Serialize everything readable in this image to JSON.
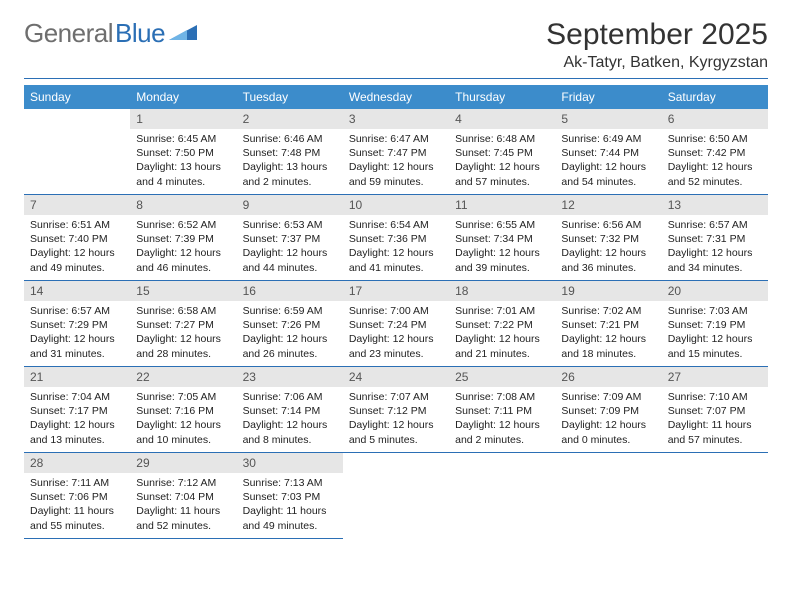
{
  "brand": {
    "name_gray": "General",
    "name_blue": "Blue"
  },
  "title": "September 2025",
  "location": "Ak-Tatyr, Batken, Kyrgyzstan",
  "theme": {
    "header_bg": "#3c8ccb",
    "rule_color": "#2b6fb5",
    "daynum_bg": "#e6e6e6",
    "text_color": "#222222",
    "logo_gray": "#6e6e6e"
  },
  "weekday_labels": [
    "Sunday",
    "Monday",
    "Tuesday",
    "Wednesday",
    "Thursday",
    "Friday",
    "Saturday"
  ],
  "layout": {
    "first_weekday_index": 1,
    "days_in_month": 30
  },
  "days": {
    "1": {
      "sunrise": "6:45 AM",
      "sunset": "7:50 PM",
      "daylight": "13 hours and 4 minutes."
    },
    "2": {
      "sunrise": "6:46 AM",
      "sunset": "7:48 PM",
      "daylight": "13 hours and 2 minutes."
    },
    "3": {
      "sunrise": "6:47 AM",
      "sunset": "7:47 PM",
      "daylight": "12 hours and 59 minutes."
    },
    "4": {
      "sunrise": "6:48 AM",
      "sunset": "7:45 PM",
      "daylight": "12 hours and 57 minutes."
    },
    "5": {
      "sunrise": "6:49 AM",
      "sunset": "7:44 PM",
      "daylight": "12 hours and 54 minutes."
    },
    "6": {
      "sunrise": "6:50 AM",
      "sunset": "7:42 PM",
      "daylight": "12 hours and 52 minutes."
    },
    "7": {
      "sunrise": "6:51 AM",
      "sunset": "7:40 PM",
      "daylight": "12 hours and 49 minutes."
    },
    "8": {
      "sunrise": "6:52 AM",
      "sunset": "7:39 PM",
      "daylight": "12 hours and 46 minutes."
    },
    "9": {
      "sunrise": "6:53 AM",
      "sunset": "7:37 PM",
      "daylight": "12 hours and 44 minutes."
    },
    "10": {
      "sunrise": "6:54 AM",
      "sunset": "7:36 PM",
      "daylight": "12 hours and 41 minutes."
    },
    "11": {
      "sunrise": "6:55 AM",
      "sunset": "7:34 PM",
      "daylight": "12 hours and 39 minutes."
    },
    "12": {
      "sunrise": "6:56 AM",
      "sunset": "7:32 PM",
      "daylight": "12 hours and 36 minutes."
    },
    "13": {
      "sunrise": "6:57 AM",
      "sunset": "7:31 PM",
      "daylight": "12 hours and 34 minutes."
    },
    "14": {
      "sunrise": "6:57 AM",
      "sunset": "7:29 PM",
      "daylight": "12 hours and 31 minutes."
    },
    "15": {
      "sunrise": "6:58 AM",
      "sunset": "7:27 PM",
      "daylight": "12 hours and 28 minutes."
    },
    "16": {
      "sunrise": "6:59 AM",
      "sunset": "7:26 PM",
      "daylight": "12 hours and 26 minutes."
    },
    "17": {
      "sunrise": "7:00 AM",
      "sunset": "7:24 PM",
      "daylight": "12 hours and 23 minutes."
    },
    "18": {
      "sunrise": "7:01 AM",
      "sunset": "7:22 PM",
      "daylight": "12 hours and 21 minutes."
    },
    "19": {
      "sunrise": "7:02 AM",
      "sunset": "7:21 PM",
      "daylight": "12 hours and 18 minutes."
    },
    "20": {
      "sunrise": "7:03 AM",
      "sunset": "7:19 PM",
      "daylight": "12 hours and 15 minutes."
    },
    "21": {
      "sunrise": "7:04 AM",
      "sunset": "7:17 PM",
      "daylight": "12 hours and 13 minutes."
    },
    "22": {
      "sunrise": "7:05 AM",
      "sunset": "7:16 PM",
      "daylight": "12 hours and 10 minutes."
    },
    "23": {
      "sunrise": "7:06 AM",
      "sunset": "7:14 PM",
      "daylight": "12 hours and 8 minutes."
    },
    "24": {
      "sunrise": "7:07 AM",
      "sunset": "7:12 PM",
      "daylight": "12 hours and 5 minutes."
    },
    "25": {
      "sunrise": "7:08 AM",
      "sunset": "7:11 PM",
      "daylight": "12 hours and 2 minutes."
    },
    "26": {
      "sunrise": "7:09 AM",
      "sunset": "7:09 PM",
      "daylight": "12 hours and 0 minutes."
    },
    "27": {
      "sunrise": "7:10 AM",
      "sunset": "7:07 PM",
      "daylight": "11 hours and 57 minutes."
    },
    "28": {
      "sunrise": "7:11 AM",
      "sunset": "7:06 PM",
      "daylight": "11 hours and 55 minutes."
    },
    "29": {
      "sunrise": "7:12 AM",
      "sunset": "7:04 PM",
      "daylight": "11 hours and 52 minutes."
    },
    "30": {
      "sunrise": "7:13 AM",
      "sunset": "7:03 PM",
      "daylight": "11 hours and 49 minutes."
    }
  },
  "labels": {
    "sunrise": "Sunrise:",
    "sunset": "Sunset:",
    "daylight": "Daylight:"
  },
  "typography": {
    "title_fontsize": 30,
    "location_fontsize": 16,
    "header_fontsize": 12,
    "body_fontsize": 10.5
  }
}
